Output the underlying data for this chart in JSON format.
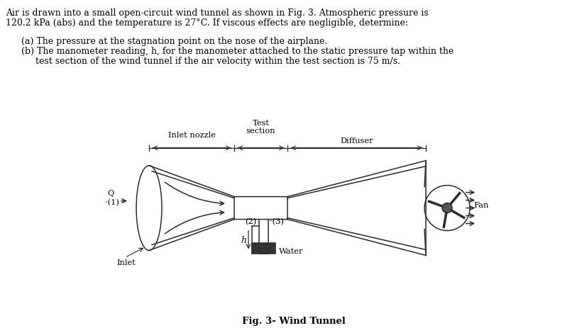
{
  "title_text": "Fig. 3- Wind Tunnel",
  "header_line1": "Air is drawn into a small open-circuit wind tunnel as shown in Fig. 3. Atmospheric pressure is",
  "header_line2": "120.2 kPa (abs) and the temperature is 27°C. If viscous effects are negligible, determine:",
  "item_a": "(a) The pressure at the stagnation point on the nose of the airplane.",
  "item_b1": "(b) The manometer reading, h, for the manometer attached to the static pressure tap within the",
  "item_b2": "     test section of the wind tunnel if the air velocity within the test section is 75 m/s.",
  "label_inlet_nozzle": "Inlet nozzle",
  "label_test_section": "Test\nsection",
  "label_diffuser": "Diffuser",
  "label_fan": "Fan",
  "label_inlet": "Inlet",
  "label_water": "Water",
  "label_h": "h",
  "label_Q": "Q",
  "label_1": "·(1)",
  "label_2": "(2)",
  "label_3": "·(3)",
  "bg_color": "#ffffff",
  "text_color": "#000000",
  "diagram_color": "#2a2a2a",
  "diagram_lw": 1.1,
  "font_size_header": 9.0,
  "font_size_diagram": 8.2,
  "font_size_caption": 9.5
}
